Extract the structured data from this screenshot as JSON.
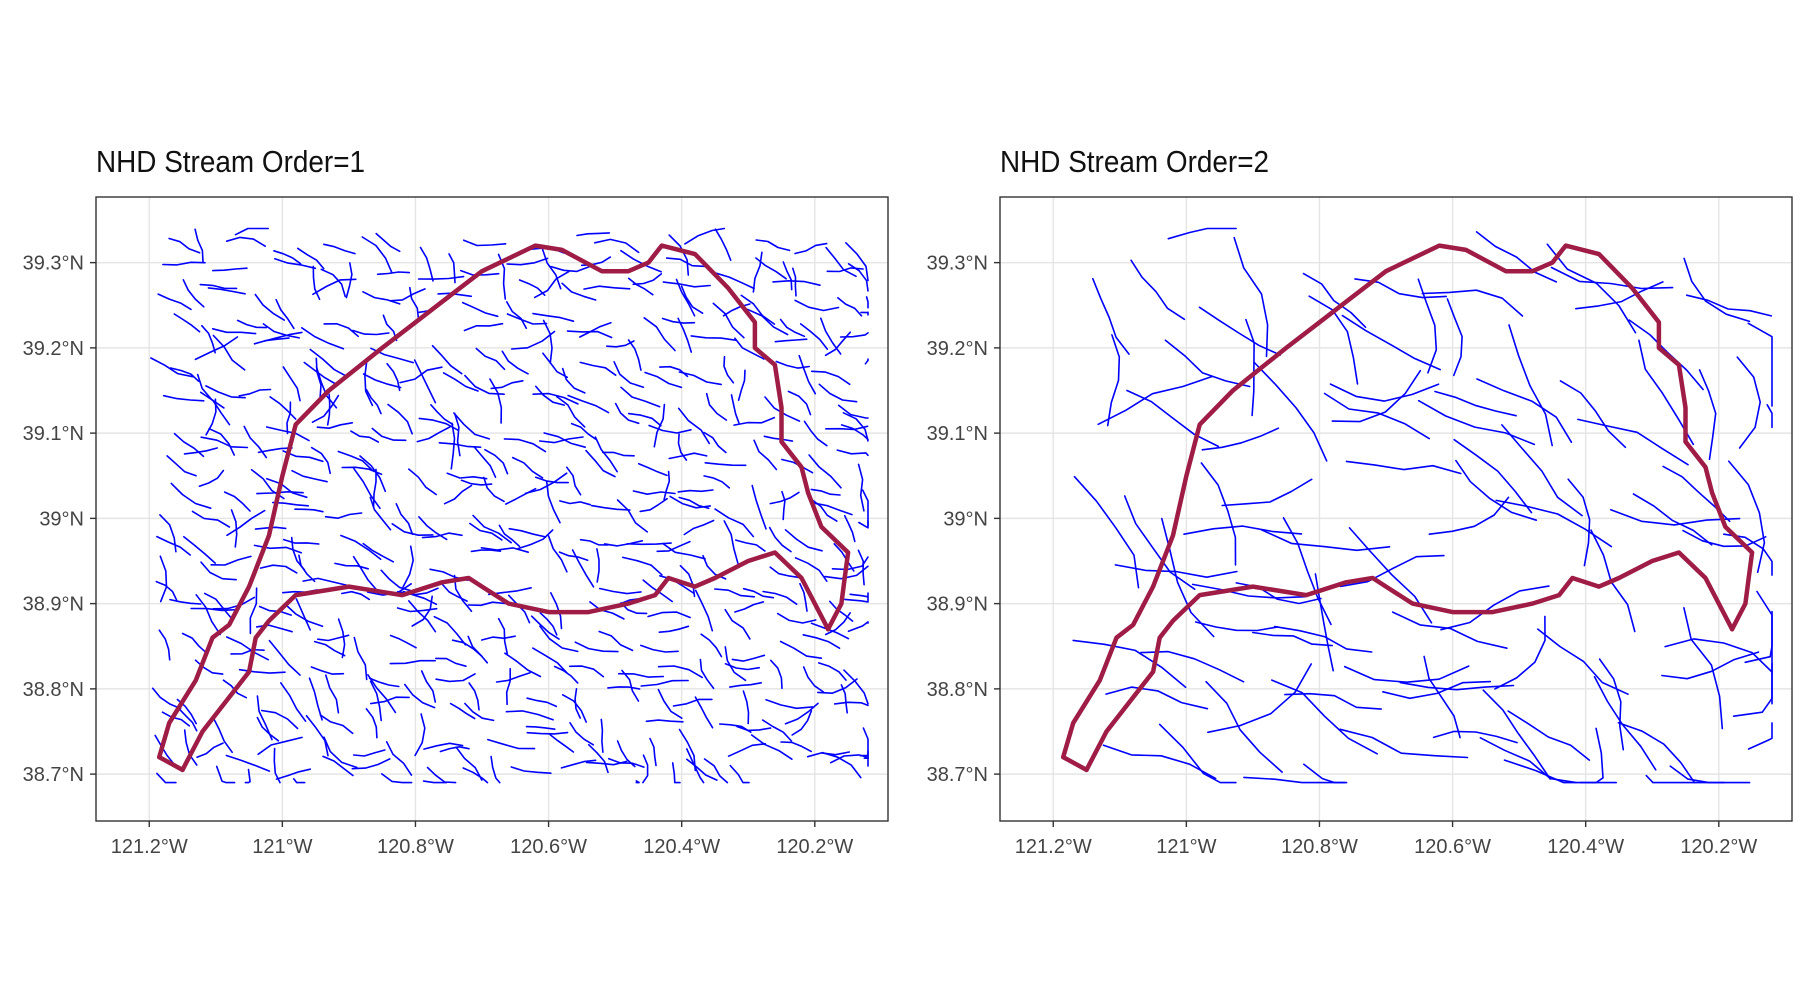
{
  "maps": [
    {
      "id": "left",
      "title": "NHD Stream Order=1",
      "stream_color": "#0000ff",
      "boundary_color": "#9e1c45",
      "density_cols": 26,
      "density_rows": 21,
      "seed": 11,
      "cell_fill": 0.95,
      "segments": 3
    },
    {
      "id": "right",
      "title": "NHD Stream Order=2",
      "stream_color": "#0000ff",
      "boundary_color": "#9e1c45",
      "density_cols": 13,
      "density_rows": 10,
      "seed": 29,
      "cell_fill": 0.85,
      "segments": 4
    }
  ],
  "axes": {
    "x_ticks": [
      {
        "value": -121.2,
        "label": "121.2°W"
      },
      {
        "value": -121.0,
        "label": "121°W"
      },
      {
        "value": -120.8,
        "label": "120.8°W"
      },
      {
        "value": -120.6,
        "label": "120.6°W"
      },
      {
        "value": -120.4,
        "label": "120.4°W"
      },
      {
        "value": -120.2,
        "label": "120.2°W"
      }
    ],
    "y_ticks": [
      {
        "value": 39.3,
        "label": "39.3°N"
      },
      {
        "value": 39.2,
        "label": "39.2°N"
      },
      {
        "value": 39.1,
        "label": "39.1°N"
      },
      {
        "value": 39.0,
        "label": "39°N"
      },
      {
        "value": 38.9,
        "label": "38.9°N"
      },
      {
        "value": 38.8,
        "label": "38.8°N"
      },
      {
        "value": 38.7,
        "label": "38.7°N"
      }
    ],
    "x_range": [
      -121.28,
      -120.09
    ],
    "y_range": [
      38.645,
      39.377
    ],
    "grid": true,
    "grid_color": "#e5e5e5",
    "frame_color": "#333333"
  },
  "streams_extent": {
    "lon": [
      -121.2,
      -120.12
    ],
    "lat": [
      38.69,
      39.34
    ]
  },
  "boundary_north": [
    [
      -121.15,
      38.705
    ],
    [
      -121.185,
      38.72
    ],
    [
      -121.17,
      38.76
    ],
    [
      -121.13,
      38.81
    ],
    [
      -121.105,
      38.86
    ],
    [
      -121.08,
      38.875
    ],
    [
      -121.05,
      38.92
    ],
    [
      -121.02,
      38.98
    ],
    [
      -121.0,
      39.05
    ],
    [
      -120.98,
      39.11
    ],
    [
      -120.93,
      39.15
    ],
    [
      -120.85,
      39.2
    ],
    [
      -120.8,
      39.23
    ],
    [
      -120.75,
      39.26
    ],
    [
      -120.7,
      39.29
    ],
    [
      -120.62,
      39.32
    ],
    [
      -120.58,
      39.315
    ],
    [
      -120.52,
      39.29
    ],
    [
      -120.48,
      39.29
    ],
    [
      -120.45,
      39.3
    ],
    [
      -120.43,
      39.32
    ],
    [
      -120.38,
      39.31
    ],
    [
      -120.33,
      39.27
    ],
    [
      -120.29,
      39.23
    ],
    [
      -120.29,
      39.2
    ],
    [
      -120.26,
      39.18
    ],
    [
      -120.25,
      39.13
    ],
    [
      -120.25,
      39.09
    ],
    [
      -120.22,
      39.06
    ],
    [
      -120.21,
      39.03
    ],
    [
      -120.19,
      38.99
    ],
    [
      -120.15,
      38.96
    ],
    [
      -120.155,
      38.93
    ],
    [
      -120.16,
      38.9
    ],
    [
      -120.18,
      38.87
    ]
  ],
  "boundary_south": [
    [
      -121.15,
      38.705
    ],
    [
      -121.12,
      38.75
    ],
    [
      -121.08,
      38.79
    ],
    [
      -121.05,
      38.82
    ],
    [
      -121.04,
      38.86
    ],
    [
      -121.02,
      38.88
    ],
    [
      -120.98,
      38.91
    ],
    [
      -120.9,
      38.92
    ],
    [
      -120.82,
      38.91
    ],
    [
      -120.76,
      38.925
    ],
    [
      -120.72,
      38.93
    ],
    [
      -120.7,
      38.92
    ],
    [
      -120.66,
      38.9
    ],
    [
      -120.6,
      38.89
    ],
    [
      -120.54,
      38.89
    ],
    [
      -120.48,
      38.9
    ],
    [
      -120.44,
      38.91
    ],
    [
      -120.42,
      38.93
    ],
    [
      -120.38,
      38.92
    ],
    [
      -120.35,
      38.93
    ],
    [
      -120.3,
      38.95
    ],
    [
      -120.26,
      38.96
    ],
    [
      -120.22,
      38.93
    ],
    [
      -120.18,
      38.87
    ]
  ]
}
